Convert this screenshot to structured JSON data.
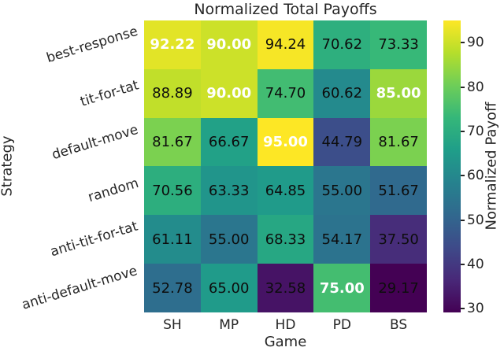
{
  "chart_data": {
    "type": "heatmap",
    "title": "Normalized Total Payoffs",
    "xlabel": "Game",
    "ylabel": "Strategy",
    "x_categories": [
      "SH",
      "MP",
      "HD",
      "PD",
      "BS"
    ],
    "y_categories": [
      "best-response",
      "tit-for-tat",
      "default-move",
      "random",
      "anti-tit-for-tat",
      "anti-default-move"
    ],
    "values": [
      [
        92.22,
        90.0,
        94.24,
        70.62,
        73.33
      ],
      [
        88.89,
        90.0,
        74.7,
        60.62,
        85.0
      ],
      [
        81.67,
        66.67,
        95.0,
        44.79,
        81.67
      ],
      [
        70.56,
        63.33,
        64.85,
        55.0,
        51.67
      ],
      [
        61.11,
        55.0,
        68.33,
        54.17,
        37.5
      ],
      [
        52.78,
        65.0,
        32.58,
        75.0,
        29.17
      ]
    ],
    "value_format": "%.2f",
    "colormap": "viridis",
    "vmin": 29.17,
    "vmax": 95.0,
    "highlight_rule": "column-max values drawn bold white",
    "colorbar": {
      "label": "Normalized Payoff",
      "ticks": [
        90,
        80,
        70,
        60,
        50,
        40,
        30
      ],
      "position": "right"
    },
    "grid": false,
    "y_tick_rotation_deg": -17
  },
  "colors": {
    "background": "#ffffff",
    "text": "#262626",
    "annotation_black": "#0d0d0d",
    "annotation_white": "#ffffff",
    "viridis_stops": [
      "#440154",
      "#482878",
      "#3e4a89",
      "#31688e",
      "#26828e",
      "#1f9e89",
      "#35b779",
      "#6ece58",
      "#b5de2b",
      "#fde725"
    ]
  }
}
